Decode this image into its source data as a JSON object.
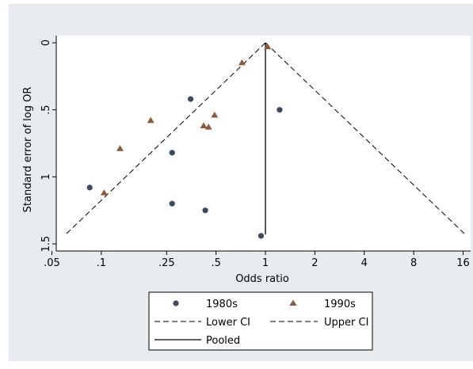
{
  "chart_data": {
    "type": "scatter",
    "title": "",
    "xlabel": "Odds ratio",
    "ylabel": "Standard error of log OR",
    "x_scale": "log",
    "y_inverted": true,
    "xlim": [
      0.05,
      17
    ],
    "ylim": [
      0,
      1.5
    ],
    "x_ticks": [
      {
        "value": 0.05,
        "label": ".05"
      },
      {
        "value": 0.1,
        "label": ".1"
      },
      {
        "value": 0.25,
        "label": ".25"
      },
      {
        "value": 0.5,
        "label": ".5"
      },
      {
        "value": 1,
        "label": "1"
      },
      {
        "value": 2,
        "label": "2"
      },
      {
        "value": 4,
        "label": "4"
      },
      {
        "value": 8,
        "label": "8"
      },
      {
        "value": 16,
        "label": "16"
      }
    ],
    "y_ticks": [
      {
        "value": 0,
        "label": "0"
      },
      {
        "value": 0.5,
        "label": ".5"
      },
      {
        "value": 1,
        "label": "1"
      },
      {
        "value": 1.5,
        "label": "1.5"
      }
    ],
    "grid": false,
    "legend_position": "bottom",
    "pooled_or": 1.0,
    "ci_lines_se_range": [
      0,
      1.43
    ],
    "series": [
      {
        "name": "1980s",
        "marker": "circle",
        "color": "#3d4a60",
        "points": [
          {
            "x": 0.085,
            "y": 1.08
          },
          {
            "x": 0.35,
            "y": 0.42
          },
          {
            "x": 0.27,
            "y": 0.82
          },
          {
            "x": 0.27,
            "y": 1.2
          },
          {
            "x": 0.43,
            "y": 1.25
          },
          {
            "x": 0.94,
            "y": 1.44
          },
          {
            "x": 1.22,
            "y": 0.5
          }
        ]
      },
      {
        "name": "1990s",
        "marker": "triangle",
        "color": "#8b5a3c",
        "points": [
          {
            "x": 0.104,
            "y": 1.12
          },
          {
            "x": 0.13,
            "y": 0.79
          },
          {
            "x": 0.2,
            "y": 0.58
          },
          {
            "x": 0.42,
            "y": 0.62
          },
          {
            "x": 0.45,
            "y": 0.63
          },
          {
            "x": 0.49,
            "y": 0.54
          },
          {
            "x": 0.72,
            "y": 0.15
          },
          {
            "x": 1.03,
            "y": 0.03
          }
        ]
      },
      {
        "name": "Lower CI",
        "type": "line",
        "style": "dashed",
        "color": "#000000"
      },
      {
        "name": "Upper CI",
        "type": "line",
        "style": "dashed",
        "color": "#000000"
      },
      {
        "name": "Pooled",
        "type": "line",
        "style": "solid",
        "color": "#000000"
      }
    ],
    "colors": {
      "outer_background": "#e8ecf0",
      "plot_background": "#ffffff"
    }
  }
}
